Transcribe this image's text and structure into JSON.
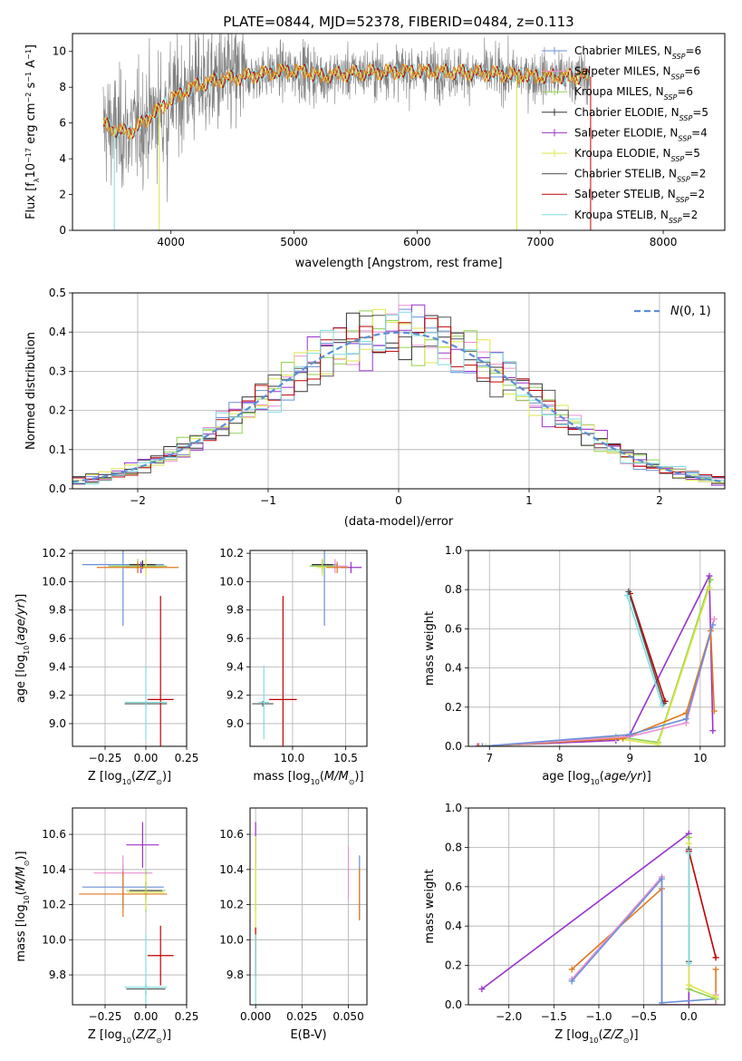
{
  "title": "PLATE=0844, MJD=52378, FIBERID=0484, z=0.113",
  "colors": {
    "Chabrier MILES": "#6a8fd8",
    "Salpeter MILES": "#ec8fd0",
    "Kroupa MILES": "#8fd14f",
    "Chabrier ELODIE": "#333333",
    "Salpeter ELODIE": "#9932cc",
    "Kroupa ELODIE": "#dde64a",
    "Chabrier STELIB": "#555555",
    "Salpeter STELIB": "#c00000",
    "Kroupa STELIB": "#7fdede",
    "norm": "#5b8fd6",
    "extra_orange": "#e07a1f"
  },
  "chart_data": [
    {
      "id": "spectrum",
      "type": "line",
      "xlabel": "wavelength [Angstrom, rest frame]",
      "ylabel": "Flux [f_λ10^{-17} erg cm^{-2} s^{-1} A^{-1}]",
      "xlim": [
        3200,
        8500
      ],
      "ylim": [
        0,
        11
      ],
      "xticks": [
        4000,
        5000,
        6000,
        7000,
        8000
      ],
      "yticks": [
        0,
        2,
        4,
        6,
        8,
        10
      ],
      "legend": [
        "Chabrier MILES, N_SSP=6",
        "Salpeter MILES, N_SSP=6",
        "Kroupa MILES, N_SSP=6",
        "Chabrier ELODIE, N_SSP=5",
        "Salpeter ELODIE, N_SSP=4",
        "Kroupa ELODIE, N_SSP=5",
        "Chabrier STELIB, N_SSP=2",
        "Salpeter STELIB, N_SSP=2",
        "Kroupa STELIB, N_SSP=2"
      ],
      "legend_placement": "upper-right",
      "model_continuum": {
        "x": [
          3450,
          3600,
          3700,
          3800,
          4000,
          4200,
          4400,
          4600,
          4900,
          5100,
          5200,
          5500,
          6000,
          6500,
          7000,
          7400
        ],
        "y": [
          5.9,
          5.5,
          5.6,
          6.2,
          7.3,
          8.1,
          8.4,
          8.6,
          8.9,
          8.9,
          8.6,
          8.8,
          8.9,
          8.8,
          8.6,
          8.6
        ]
      }
    },
    {
      "id": "residuals",
      "type": "histogram",
      "xlabel": "(data-model)/error",
      "ylabel": "Normed distribution",
      "xlim": [
        -2.5,
        2.5
      ],
      "ylim": [
        0,
        0.5
      ],
      "xticks": [
        -2,
        -1,
        0,
        1,
        2
      ],
      "yticks": [
        0.0,
        0.1,
        0.2,
        0.3,
        0.4,
        0.5
      ],
      "reference_curve": "N(0,1)",
      "legend_placement": "upper-right",
      "bin_width": 0.1
    },
    {
      "id": "age_vs_Z",
      "type": "scatter",
      "xlabel": "Z [log10(Z/Z_sun)]",
      "ylabel": "age  [log10(age/yr)]",
      "xlim": [
        -0.45,
        0.25
      ],
      "ylim": [
        8.84,
        10.22
      ],
      "xticks": [
        -0.25,
        0.0,
        0.25
      ],
      "yticks": [
        9.0,
        9.2,
        9.4,
        9.6,
        9.8,
        10.0,
        10.2
      ],
      "points": [
        {
          "s": "Chabrier MILES",
          "x": -0.14,
          "y": 10.12,
          "xe": 0.25,
          "ye": 0.43
        },
        {
          "s": "Salpeter MILES",
          "x": 0.0,
          "y": 10.11,
          "xe": 0.12,
          "ye": 0.05
        },
        {
          "s": "Kroupa MILES",
          "x": -0.05,
          "y": 10.11,
          "xe": 0.18,
          "ye": 0.05
        },
        {
          "s": "Chabrier ELODIE",
          "x": -0.02,
          "y": 10.12,
          "xe": 0.08,
          "ye": 0.03
        },
        {
          "s": "Salpeter ELODIE",
          "x": -0.03,
          "y": 10.1,
          "xe": 0.1,
          "ye": 0.04
        },
        {
          "s": "Kroupa ELODIE",
          "x": 0.0,
          "y": 10.1,
          "xe": 0.1,
          "ye": 0.06
        },
        {
          "s": "Chabrier STELIB",
          "x": 0.0,
          "y": 9.14,
          "xe": 0.13,
          "ye": 0.02
        },
        {
          "s": "Salpeter STELIB",
          "x": 0.09,
          "y": 9.17,
          "xe": 0.08,
          "ye": 0.73
        },
        {
          "s": "Kroupa STELIB",
          "x": 0.0,
          "y": 9.15,
          "xe": 0.13,
          "ye": 0.26
        },
        {
          "s": "extra_orange",
          "x": -0.05,
          "y": 10.1,
          "xe": 0.25,
          "ye": 0.04
        }
      ]
    },
    {
      "id": "age_vs_mass",
      "type": "scatter",
      "xlabel": "mass [log10(M/M_sun)]",
      "ylabel": "",
      "xlim": [
        9.6,
        10.7
      ],
      "ylim": [
        8.84,
        10.22
      ],
      "xticks": [
        10.0,
        10.5
      ],
      "yticks": [
        9.0,
        9.2,
        9.4,
        9.6,
        9.8,
        10.0,
        10.2
      ],
      "points": [
        {
          "s": "Chabrier MILES",
          "x": 10.3,
          "y": 10.12,
          "xe": 0.12,
          "ye": 0.43
        },
        {
          "s": "Salpeter MILES",
          "x": 10.4,
          "y": 10.11,
          "xe": 0.12,
          "ye": 0.05
        },
        {
          "s": "Kroupa MILES",
          "x": 10.28,
          "y": 10.11,
          "xe": 0.12,
          "ye": 0.05
        },
        {
          "s": "Chabrier ELODIE",
          "x": 10.28,
          "y": 10.12,
          "xe": 0.1,
          "ye": 0.03
        },
        {
          "s": "Salpeter ELODIE",
          "x": 10.55,
          "y": 10.1,
          "xe": 0.1,
          "ye": 0.04
        },
        {
          "s": "Kroupa ELODIE",
          "x": 10.28,
          "y": 10.1,
          "xe": 0.05,
          "ye": 0.06
        },
        {
          "s": "Chabrier STELIB",
          "x": 9.72,
          "y": 9.14,
          "xe": 0.1,
          "ye": 0.02
        },
        {
          "s": "Salpeter STELIB",
          "x": 9.91,
          "y": 9.17,
          "xe": 0.13,
          "ye": 0.73
        },
        {
          "s": "Kroupa STELIB",
          "x": 9.73,
          "y": 9.15,
          "xe": 0.05,
          "ye": 0.26
        },
        {
          "s": "extra_orange",
          "x": 10.42,
          "y": 10.1,
          "xe": 0.1,
          "ye": 0.04
        }
      ]
    },
    {
      "id": "weight_vs_age",
      "type": "line",
      "xlabel": "age  [log10(age/yr)]",
      "ylabel": "mass weight",
      "xlim": [
        6.7,
        10.35
      ],
      "ylim": [
        0,
        1.0
      ],
      "xticks": [
        7,
        8,
        9,
        10
      ],
      "yticks": [
        0.0,
        0.2,
        0.4,
        0.6,
        0.8,
        1.0
      ],
      "series": [
        {
          "s": "Salpeter ELODIE",
          "x": [
            6.83,
            8.8,
            9.0,
            10.13,
            10.18
          ],
          "y": [
            0.0,
            0.03,
            0.06,
            0.87,
            0.08
          ]
        },
        {
          "s": "Kroupa MILES",
          "x": [
            6.9,
            8.8,
            9.4,
            10.15
          ],
          "y": [
            0.0,
            0.05,
            0.02,
            0.85
          ]
        },
        {
          "s": "Kroupa ELODIE",
          "x": [
            6.95,
            8.8,
            9.4,
            10.13
          ],
          "y": [
            0.0,
            0.04,
            0.01,
            0.81
          ]
        },
        {
          "s": "extra_orange",
          "x": [
            6.85,
            8.9,
            9.8,
            10.15,
            10.2
          ],
          "y": [
            0.0,
            0.04,
            0.17,
            0.59,
            0.18
          ]
        },
        {
          "s": "Salpeter MILES",
          "x": [
            6.9,
            9.0,
            9.8,
            10.2
          ],
          "y": [
            0.0,
            0.05,
            0.12,
            0.65
          ]
        },
        {
          "s": "Chabrier MILES",
          "x": [
            6.9,
            9.0,
            9.8,
            10.18
          ],
          "y": [
            0.0,
            0.06,
            0.14,
            0.62
          ]
        },
        {
          "s": "Salpeter STELIB",
          "x": [
            9.0,
            9.5
          ],
          "y": [
            0.78,
            0.23
          ]
        },
        {
          "s": "Chabrier STELIB",
          "x": [
            8.98,
            9.48
          ],
          "y": [
            0.79,
            0.22
          ]
        },
        {
          "s": "Kroupa STELIB",
          "x": [
            8.96,
            9.46
          ],
          "y": [
            0.77,
            0.21
          ]
        }
      ]
    },
    {
      "id": "mass_vs_Z",
      "type": "scatter",
      "xlabel": "Z [log10(Z/Z_sun)]",
      "ylabel": "mass [log10(M/M_sun)]",
      "xlim": [
        -0.45,
        0.25
      ],
      "ylim": [
        9.63,
        10.75
      ],
      "xticks": [
        -0.25,
        0.0,
        0.25
      ],
      "yticks": [
        9.8,
        10.0,
        10.2,
        10.4,
        10.6
      ],
      "points": [
        {
          "s": "Chabrier MILES",
          "x": -0.14,
          "y": 10.3,
          "xe": 0.25,
          "ye": 0.12
        },
        {
          "s": "Salpeter MILES",
          "x": -0.14,
          "y": 10.38,
          "xe": 0.18,
          "ye": 0.1
        },
        {
          "s": "Kroupa MILES",
          "x": 0.0,
          "y": 10.28,
          "xe": 0.12,
          "ye": 0.12
        },
        {
          "s": "Chabrier ELODIE",
          "x": 0.0,
          "y": 10.28,
          "xe": 0.1,
          "ye": 0.05
        },
        {
          "s": "Salpeter ELODIE",
          "x": -0.02,
          "y": 10.54,
          "xe": 0.1,
          "ye": 0.13
        },
        {
          "s": "Kroupa ELODIE",
          "x": 0.0,
          "y": 10.27,
          "xe": 0.11,
          "ye": 0.1
        },
        {
          "s": "Chabrier STELIB",
          "x": 0.0,
          "y": 9.72,
          "xe": 0.12,
          "ye": 0.03
        },
        {
          "s": "Salpeter STELIB",
          "x": 0.09,
          "y": 9.91,
          "xe": 0.08,
          "ye": 0.17
        },
        {
          "s": "Kroupa STELIB",
          "x": 0.0,
          "y": 9.73,
          "xe": 0.13,
          "ye": 0.3
        },
        {
          "s": "extra_orange",
          "x": -0.14,
          "y": 10.26,
          "xe": 0.27,
          "ye": 0.13
        }
      ]
    },
    {
      "id": "mass_vs_EBV",
      "type": "scatter",
      "xlabel": "E(B-V)",
      "ylabel": "",
      "xlim": [
        -0.003,
        0.06
      ],
      "ylim": [
        9.63,
        10.75
      ],
      "xticks": [
        0.0,
        0.025,
        0.05
      ],
      "yticks": [
        9.8,
        10.0,
        10.2,
        10.4,
        10.6
      ],
      "points": [
        {
          "s": "Chabrier MILES",
          "x": 0.056,
          "y": 10.3,
          "xe": 0.0,
          "ye": 0.18
        },
        {
          "s": "Salpeter MILES",
          "x": 0.05,
          "y": 10.38,
          "xe": 0.0,
          "ye": 0.15
        },
        {
          "s": "Kroupa MILES",
          "x": 0.0,
          "y": 10.28,
          "xe": 0.0,
          "ye": 0.12
        },
        {
          "s": "Salpeter ELODIE",
          "x": 0.0,
          "y": 10.54,
          "xe": 0.0,
          "ye": 0.13
        },
        {
          "s": "Kroupa ELODIE",
          "x": 0.0,
          "y": 10.27,
          "xe": 0.0,
          "ye": 0.32
        },
        {
          "s": "Salpeter STELIB",
          "x": 0.0,
          "y": 9.93,
          "xe": 0.0,
          "ye": 0.14
        },
        {
          "s": "Kroupa STELIB",
          "x": 0.0,
          "y": 9.73,
          "xe": 0.0,
          "ye": 0.3
        },
        {
          "s": "extra_orange",
          "x": 0.056,
          "y": 10.26,
          "xe": 0.0,
          "ye": 0.15
        }
      ]
    },
    {
      "id": "weight_vs_Z",
      "type": "line",
      "xlabel": "Z [log10(Z/Z_sun)]",
      "ylabel": "mass weight",
      "xlim": [
        -2.45,
        0.4
      ],
      "ylim": [
        0,
        1.0
      ],
      "xticks": [
        -2.0,
        -1.5,
        -1.0,
        -0.5,
        0.0
      ],
      "yticks": [
        0.0,
        0.2,
        0.4,
        0.6,
        0.8,
        1.0
      ],
      "series": [
        {
          "s": "Salpeter ELODIE",
          "x": [
            -2.3,
            0.0,
            0.0
          ],
          "y": [
            0.08,
            0.87,
            0.0
          ]
        },
        {
          "s": "extra_orange",
          "x": [
            -1.3,
            -0.3,
            -0.3,
            0.3,
            0.3
          ],
          "y": [
            0.18,
            0.59,
            0.0,
            0.0,
            0.18
          ]
        },
        {
          "s": "Salpeter MILES",
          "x": [
            -1.3,
            -0.3,
            -0.3,
            0.3,
            0.3
          ],
          "y": [
            0.13,
            0.65,
            0.0,
            0.0,
            0.05
          ]
        },
        {
          "s": "Chabrier MILES",
          "x": [
            -1.3,
            -0.3,
            -0.3,
            0.3
          ],
          "y": [
            0.12,
            0.64,
            0.01,
            0.03
          ]
        },
        {
          "s": "Kroupa MILES",
          "x": [
            0.0,
            0.0,
            0.3
          ],
          "y": [
            0.85,
            0.08,
            0.03
          ]
        },
        {
          "s": "Kroupa ELODIE",
          "x": [
            0.0,
            0.0,
            0.3
          ],
          "y": [
            0.82,
            0.1,
            0.04
          ]
        },
        {
          "s": "Salpeter STELIB",
          "x": [
            0.0,
            0.3
          ],
          "y": [
            0.78,
            0.24
          ]
        },
        {
          "s": "Chabrier STELIB",
          "x": [
            0.0,
            0.0
          ],
          "y": [
            0.79,
            0.22
          ]
        },
        {
          "s": "Kroupa STELIB",
          "x": [
            0.0,
            0.0
          ],
          "y": [
            0.77,
            0.21
          ]
        }
      ]
    }
  ]
}
